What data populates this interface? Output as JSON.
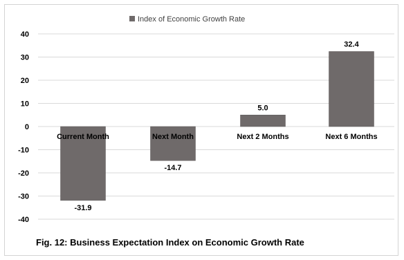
{
  "chart_data": {
    "type": "bar",
    "legend": {
      "label": "Index of Economic Growth Rate",
      "position": "top"
    },
    "categories": [
      "Current Month",
      "Next Month",
      "Next 2 Months",
      "Next 6 Months"
    ],
    "series": [
      {
        "name": "Index of Economic Growth Rate",
        "values": [
          -31.9,
          -14.7,
          5.0,
          32.4
        ]
      }
    ],
    "data_labels": [
      "-31.9",
      "-14.7",
      "5.0",
      "32.4"
    ],
    "ylim": [
      -40,
      40
    ],
    "yticks": [
      40,
      30,
      20,
      10,
      0,
      -10,
      -20,
      -30,
      -40
    ],
    "grid": true,
    "bar_color": "#6f6a6a",
    "grid_color": "#d9d9d9"
  },
  "caption": "Fig. 12: Business Expectation Index on Economic Growth Rate"
}
